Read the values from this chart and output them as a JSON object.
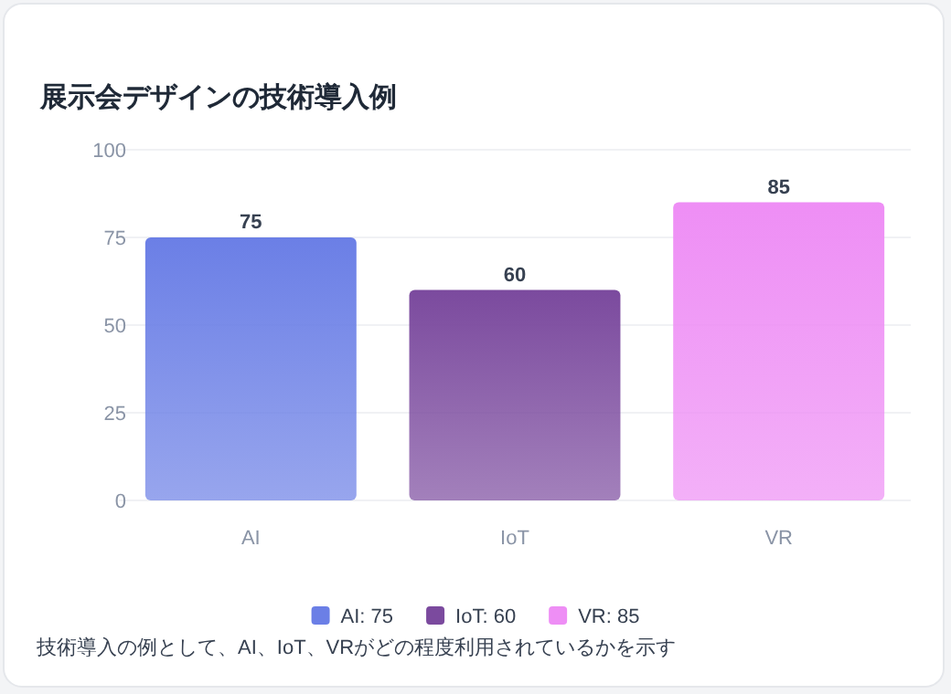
{
  "chart_data": {
    "type": "bar",
    "title": "展示会デザインの技術導入例",
    "categories": [
      "AI",
      "IoT",
      "VR"
    ],
    "series": [
      {
        "name": "AI: 75",
        "color": "#6b7fe6",
        "values": [
          75,
          null,
          null
        ]
      },
      {
        "name": "IoT: 60",
        "color": "#7b4a9e",
        "values": [
          null,
          60,
          null
        ]
      },
      {
        "name": "VR: 85",
        "color": "#ee8ef5",
        "values": [
          null,
          null,
          85
        ]
      }
    ],
    "ylim": [
      0,
      100
    ],
    "yticks": [
      0,
      25,
      50,
      75,
      100
    ],
    "grid": "y",
    "data_labels": true,
    "legend": "bottom",
    "annotations": [
      "技術導入の例として、AI、IoT、VRがどの程度利用されているかを示す"
    ]
  }
}
